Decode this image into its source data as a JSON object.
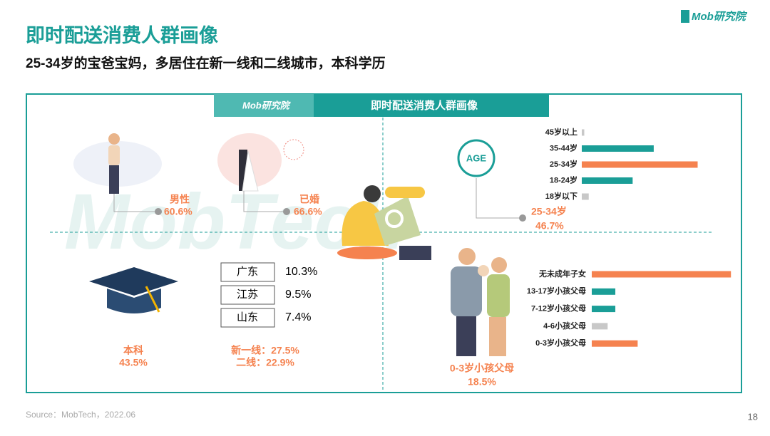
{
  "header": {
    "title": "即时配送消费人群画像",
    "subtitle": "25-34岁的宝爸宝妈，多居住在新一线和二线城市，本科学历",
    "logo": "Mob研究院"
  },
  "panel": {
    "title": "即时配送消费人群画像",
    "logo": "Mob研究院",
    "watermark": "MobTech"
  },
  "stats": {
    "gender": {
      "label": "男性",
      "value": "60.6%"
    },
    "marriage": {
      "label": "已婚",
      "value": "66.6%"
    },
    "education": {
      "label": "本科",
      "value": "43.5%"
    },
    "tiers": [
      "新一线：27.5%",
      "二线：22.9%"
    ],
    "age_badge": "AGE"
  },
  "table": {
    "rows": [
      [
        "广东",
        "10.3%"
      ],
      [
        "江苏",
        "9.5%"
      ],
      [
        "山东",
        "7.4%"
      ]
    ]
  },
  "chart_data": [
    {
      "type": "bar",
      "orientation": "horizontal",
      "categories": [
        "45岁以上",
        "35-44岁",
        "25-34岁",
        "18-24岁",
        "18岁以下"
      ],
      "values": [
        1.0,
        29.0,
        46.7,
        20.5,
        2.8
      ],
      "value_labels": [
        null,
        null,
        "46.7%",
        null,
        null
      ],
      "colors": [
        "#c8c8c8",
        "#1a9e97",
        "#f5824f",
        "#1a9e97",
        "#c8c8c8"
      ]
    },
    {
      "type": "bar",
      "orientation": "horizontal",
      "categories": [
        "无未成年子女",
        "13-17岁小孩父母",
        "7-12岁小孩父母",
        "4-6小孩父母",
        "0-3岁小孩父母"
      ],
      "values": [
        56.1,
        9.5,
        9.5,
        6.4,
        18.5
      ],
      "value_labels": [
        null,
        null,
        null,
        null,
        "18.5%"
      ],
      "colors": [
        "#f5824f",
        "#1a9e97",
        "#1a9e97",
        "#c8c8c8",
        "#f5824f"
      ]
    }
  ],
  "footer": {
    "source": "Source：MobTech，2022.06",
    "page": "18"
  }
}
